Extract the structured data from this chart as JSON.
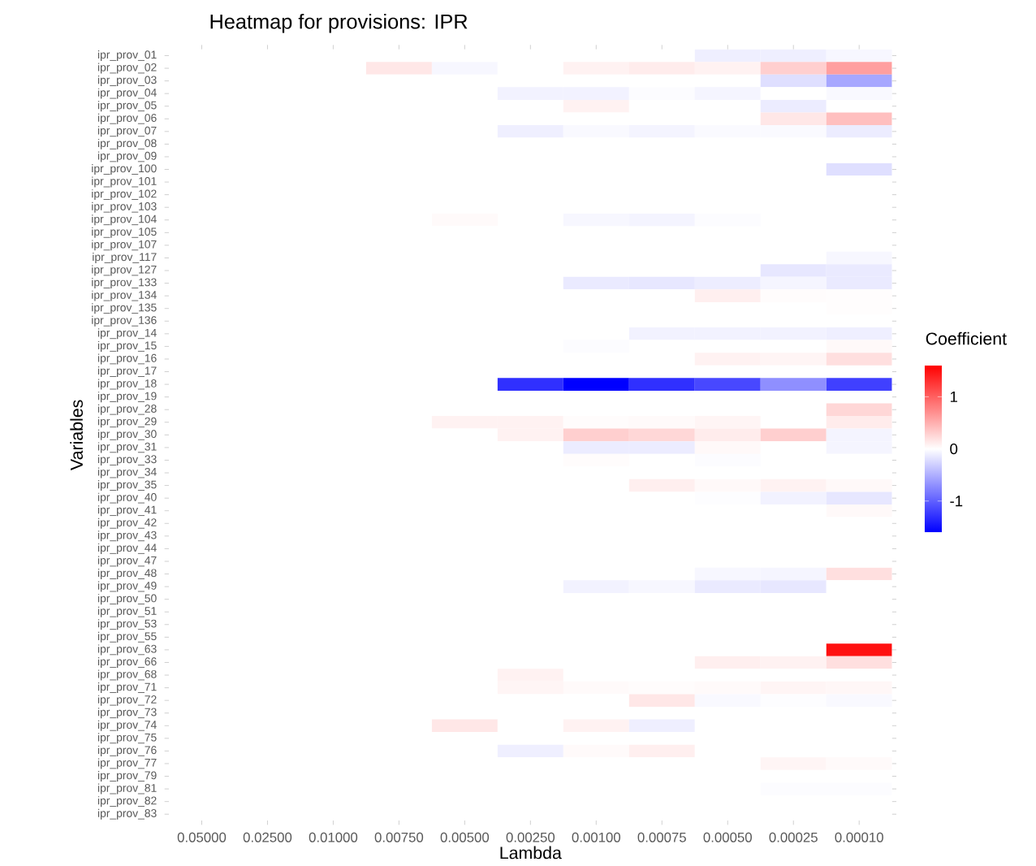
{
  "chart_data": {
    "type": "heatmap",
    "title": "Heatmap for provisions:  IPR",
    "xlabel": "Lambda",
    "ylabel": "Variables",
    "clabel": "Coefficient",
    "categories": [
      "0.05000",
      "0.02500",
      "0.01000",
      "0.00750",
      "0.00500",
      "0.00250",
      "0.00100",
      "0.00075",
      "0.00050",
      "0.00025",
      "0.00010"
    ],
    "y_categories": [
      "ipr_prov_01",
      "ipr_prov_02",
      "ipr_prov_03",
      "ipr_prov_04",
      "ipr_prov_05",
      "ipr_prov_06",
      "ipr_prov_07",
      "ipr_prov_08",
      "ipr_prov_09",
      "ipr_prov_100",
      "ipr_prov_101",
      "ipr_prov_102",
      "ipr_prov_103",
      "ipr_prov_104",
      "ipr_prov_105",
      "ipr_prov_107",
      "ipr_prov_117",
      "ipr_prov_127",
      "ipr_prov_133",
      "ipr_prov_134",
      "ipr_prov_135",
      "ipr_prov_136",
      "ipr_prov_14",
      "ipr_prov_15",
      "ipr_prov_16",
      "ipr_prov_17",
      "ipr_prov_18",
      "ipr_prov_19",
      "ipr_prov_28",
      "ipr_prov_29",
      "ipr_prov_30",
      "ipr_prov_31",
      "ipr_prov_33",
      "ipr_prov_34",
      "ipr_prov_35",
      "ipr_prov_40",
      "ipr_prov_41",
      "ipr_prov_42",
      "ipr_prov_43",
      "ipr_prov_44",
      "ipr_prov_47",
      "ipr_prov_48",
      "ipr_prov_49",
      "ipr_prov_50",
      "ipr_prov_51",
      "ipr_prov_53",
      "ipr_prov_55",
      "ipr_prov_63",
      "ipr_prov_66",
      "ipr_prov_68",
      "ipr_prov_71",
      "ipr_prov_72",
      "ipr_prov_73",
      "ipr_prov_74",
      "ipr_prov_75",
      "ipr_prov_76",
      "ipr_prov_77",
      "ipr_prov_79",
      "ipr_prov_81",
      "ipr_prov_82",
      "ipr_prov_83"
    ],
    "cells": [
      [
        0,
        0,
        0,
        0,
        0,
        0,
        0,
        0,
        -0.1,
        -0.1,
        -0.05
      ],
      [
        0,
        0,
        0,
        0.15,
        -0.05,
        0,
        0.08,
        0.12,
        0.08,
        0.3,
        0.6
      ],
      [
        0,
        0,
        0,
        0,
        0,
        0,
        0,
        0,
        0,
        -0.2,
        -0.55
      ],
      [
        0,
        0,
        0,
        0,
        0,
        -0.08,
        -0.08,
        -0.02,
        -0.06,
        0,
        -0.04
      ],
      [
        0,
        0,
        0,
        0,
        0,
        0,
        0.08,
        0,
        0,
        -0.12,
        0
      ],
      [
        0,
        0,
        0,
        0,
        0,
        0,
        0,
        0,
        0,
        0.15,
        0.4
      ],
      [
        0,
        0,
        0,
        0,
        0,
        -0.1,
        -0.04,
        -0.07,
        -0.03,
        -0.03,
        -0.12
      ],
      [
        0,
        0,
        0,
        0,
        0,
        0,
        0,
        0,
        0,
        0,
        0
      ],
      [
        0,
        0,
        0,
        0,
        0,
        0,
        0,
        0,
        0,
        0,
        0
      ],
      [
        0,
        0,
        0,
        0,
        0,
        0,
        0,
        0,
        0,
        0,
        -0.2
      ],
      [
        0,
        0,
        0,
        0,
        0,
        0,
        0,
        0,
        0,
        0,
        0
      ],
      [
        0,
        0,
        0,
        0,
        0,
        0,
        0,
        0,
        0,
        0,
        0
      ],
      [
        0,
        0,
        0,
        0,
        0,
        0,
        0,
        0,
        0,
        0,
        0
      ],
      [
        0,
        0,
        0,
        0,
        0.03,
        0,
        -0.05,
        -0.07,
        -0.02,
        0,
        0
      ],
      [
        0,
        0,
        0,
        0,
        0,
        0,
        0,
        0,
        0,
        0,
        0
      ],
      [
        0,
        0,
        0,
        0,
        0,
        0,
        0,
        0,
        0,
        0,
        0
      ],
      [
        0,
        0,
        0,
        0,
        0,
        0,
        0,
        0,
        0,
        0,
        -0.05
      ],
      [
        0,
        0,
        0,
        0,
        0,
        0,
        0,
        0,
        0,
        -0.15,
        -0.13
      ],
      [
        0,
        0,
        0,
        0,
        0,
        0,
        -0.13,
        -0.15,
        -0.11,
        -0.06,
        -0.13
      ],
      [
        0,
        0,
        0,
        0,
        0,
        0,
        0,
        0,
        0.1,
        0.02,
        0.01
      ],
      [
        0,
        0,
        0,
        0,
        0,
        0,
        0,
        0,
        0,
        0,
        0.01
      ],
      [
        0,
        0,
        0,
        0,
        0,
        0,
        0,
        0,
        0,
        0,
        0
      ],
      [
        0,
        0,
        0,
        0,
        0,
        0,
        0,
        -0.08,
        -0.08,
        -0.08,
        -0.1
      ],
      [
        0,
        0,
        0,
        0,
        0,
        0,
        -0.02,
        0,
        0,
        0,
        0.04
      ],
      [
        0,
        0,
        0,
        0,
        0,
        0,
        0,
        0,
        0.08,
        0.06,
        0.2
      ],
      [
        0,
        0,
        0,
        0,
        0,
        0,
        0,
        0,
        0,
        0,
        0
      ],
      [
        0,
        0,
        0,
        0,
        0,
        -1.3,
        -1.6,
        -1.3,
        -1.15,
        -0.7,
        -1.2
      ],
      [
        0,
        0,
        0,
        0,
        0,
        0,
        0,
        0,
        0,
        0,
        0
      ],
      [
        0,
        0,
        0,
        0,
        0,
        0,
        0,
        0,
        0,
        0,
        0.25
      ],
      [
        0,
        0,
        0,
        0,
        0.08,
        0.08,
        0.02,
        0.03,
        0.06,
        0,
        0.12
      ],
      [
        0,
        0,
        0,
        0,
        0,
        0.08,
        0.3,
        0.25,
        0.12,
        0.3,
        -0.07
      ],
      [
        0,
        0,
        0,
        0,
        0,
        0,
        -0.12,
        -0.12,
        0.04,
        0,
        -0.06
      ],
      [
        0,
        0,
        0,
        0,
        0,
        0,
        0.02,
        0,
        -0.02,
        0,
        0
      ],
      [
        0,
        0,
        0,
        0,
        0,
        0,
        0,
        0,
        0,
        0,
        0
      ],
      [
        0,
        0,
        0,
        0,
        0,
        0,
        0,
        0.1,
        0.04,
        0.08,
        0.04
      ],
      [
        0,
        0,
        0,
        0,
        0,
        0,
        0,
        0,
        -0.01,
        -0.08,
        -0.15
      ],
      [
        0,
        0,
        0,
        0,
        0,
        0,
        0,
        0,
        0,
        0,
        0.04
      ],
      [
        0,
        0,
        0,
        0,
        0,
        0,
        0,
        0,
        0,
        0,
        0
      ],
      [
        0,
        0,
        0,
        0,
        0,
        0,
        0,
        0,
        0,
        0,
        0
      ],
      [
        0,
        0,
        0,
        0,
        0,
        0,
        0,
        0,
        0,
        0,
        0
      ],
      [
        0,
        0,
        0,
        0,
        0,
        0,
        0,
        0,
        0,
        0,
        0
      ],
      [
        0,
        0,
        0,
        0,
        0,
        0,
        0,
        0,
        -0.05,
        -0.06,
        0.2
      ],
      [
        0,
        0,
        0,
        0,
        0,
        0,
        -0.08,
        -0.05,
        -0.13,
        -0.15,
        0
      ],
      [
        0,
        0,
        0,
        0,
        0,
        0,
        0,
        0,
        0,
        0,
        0
      ],
      [
        0,
        0,
        0,
        0,
        0,
        0,
        0,
        0,
        0,
        0,
        0
      ],
      [
        0,
        0,
        0,
        0,
        0,
        0,
        0,
        0,
        0,
        0,
        0
      ],
      [
        0,
        0,
        0,
        0,
        0,
        0,
        0,
        0,
        0,
        0,
        0
      ],
      [
        0,
        0,
        0,
        0,
        0,
        0,
        0,
        0,
        0,
        0,
        1.5
      ],
      [
        0,
        0,
        0,
        0,
        0,
        0,
        0,
        0,
        0.1,
        0.08,
        0.2
      ],
      [
        0,
        0,
        0,
        0,
        0,
        0.08,
        0,
        0,
        0,
        0,
        0
      ],
      [
        0,
        0,
        0,
        0,
        0,
        0.06,
        0.03,
        0.02,
        0.03,
        0.06,
        0.05
      ],
      [
        0,
        0,
        0,
        0,
        0,
        0,
        0,
        0.15,
        -0.04,
        -0.01,
        -0.04
      ],
      [
        0,
        0,
        0,
        0,
        0,
        0,
        0,
        0,
        0,
        0,
        0
      ],
      [
        0,
        0,
        0,
        0,
        0.15,
        0,
        0.08,
        -0.1,
        0,
        0,
        0
      ],
      [
        0,
        0,
        0,
        0,
        0,
        0,
        0,
        0,
        0,
        0,
        0
      ],
      [
        0,
        0,
        0,
        0,
        0,
        -0.1,
        0.03,
        0.1,
        0,
        0,
        0
      ],
      [
        0,
        0,
        0,
        0,
        0,
        0,
        0,
        0,
        0,
        0.06,
        0.03
      ],
      [
        0,
        0,
        0,
        0,
        0,
        0,
        0,
        0,
        0,
        0,
        0
      ],
      [
        0,
        0,
        0,
        0,
        0,
        0,
        0,
        0,
        0,
        -0.02,
        -0.02
      ],
      [
        0,
        0,
        0,
        0,
        0,
        0,
        0,
        0,
        0,
        0,
        0
      ],
      [
        0,
        0,
        0,
        0,
        0,
        0,
        0,
        0,
        0,
        0,
        0
      ]
    ],
    "clim": [
      -1.6,
      1.6
    ],
    "cticks": [
      -1,
      0,
      1
    ]
  }
}
